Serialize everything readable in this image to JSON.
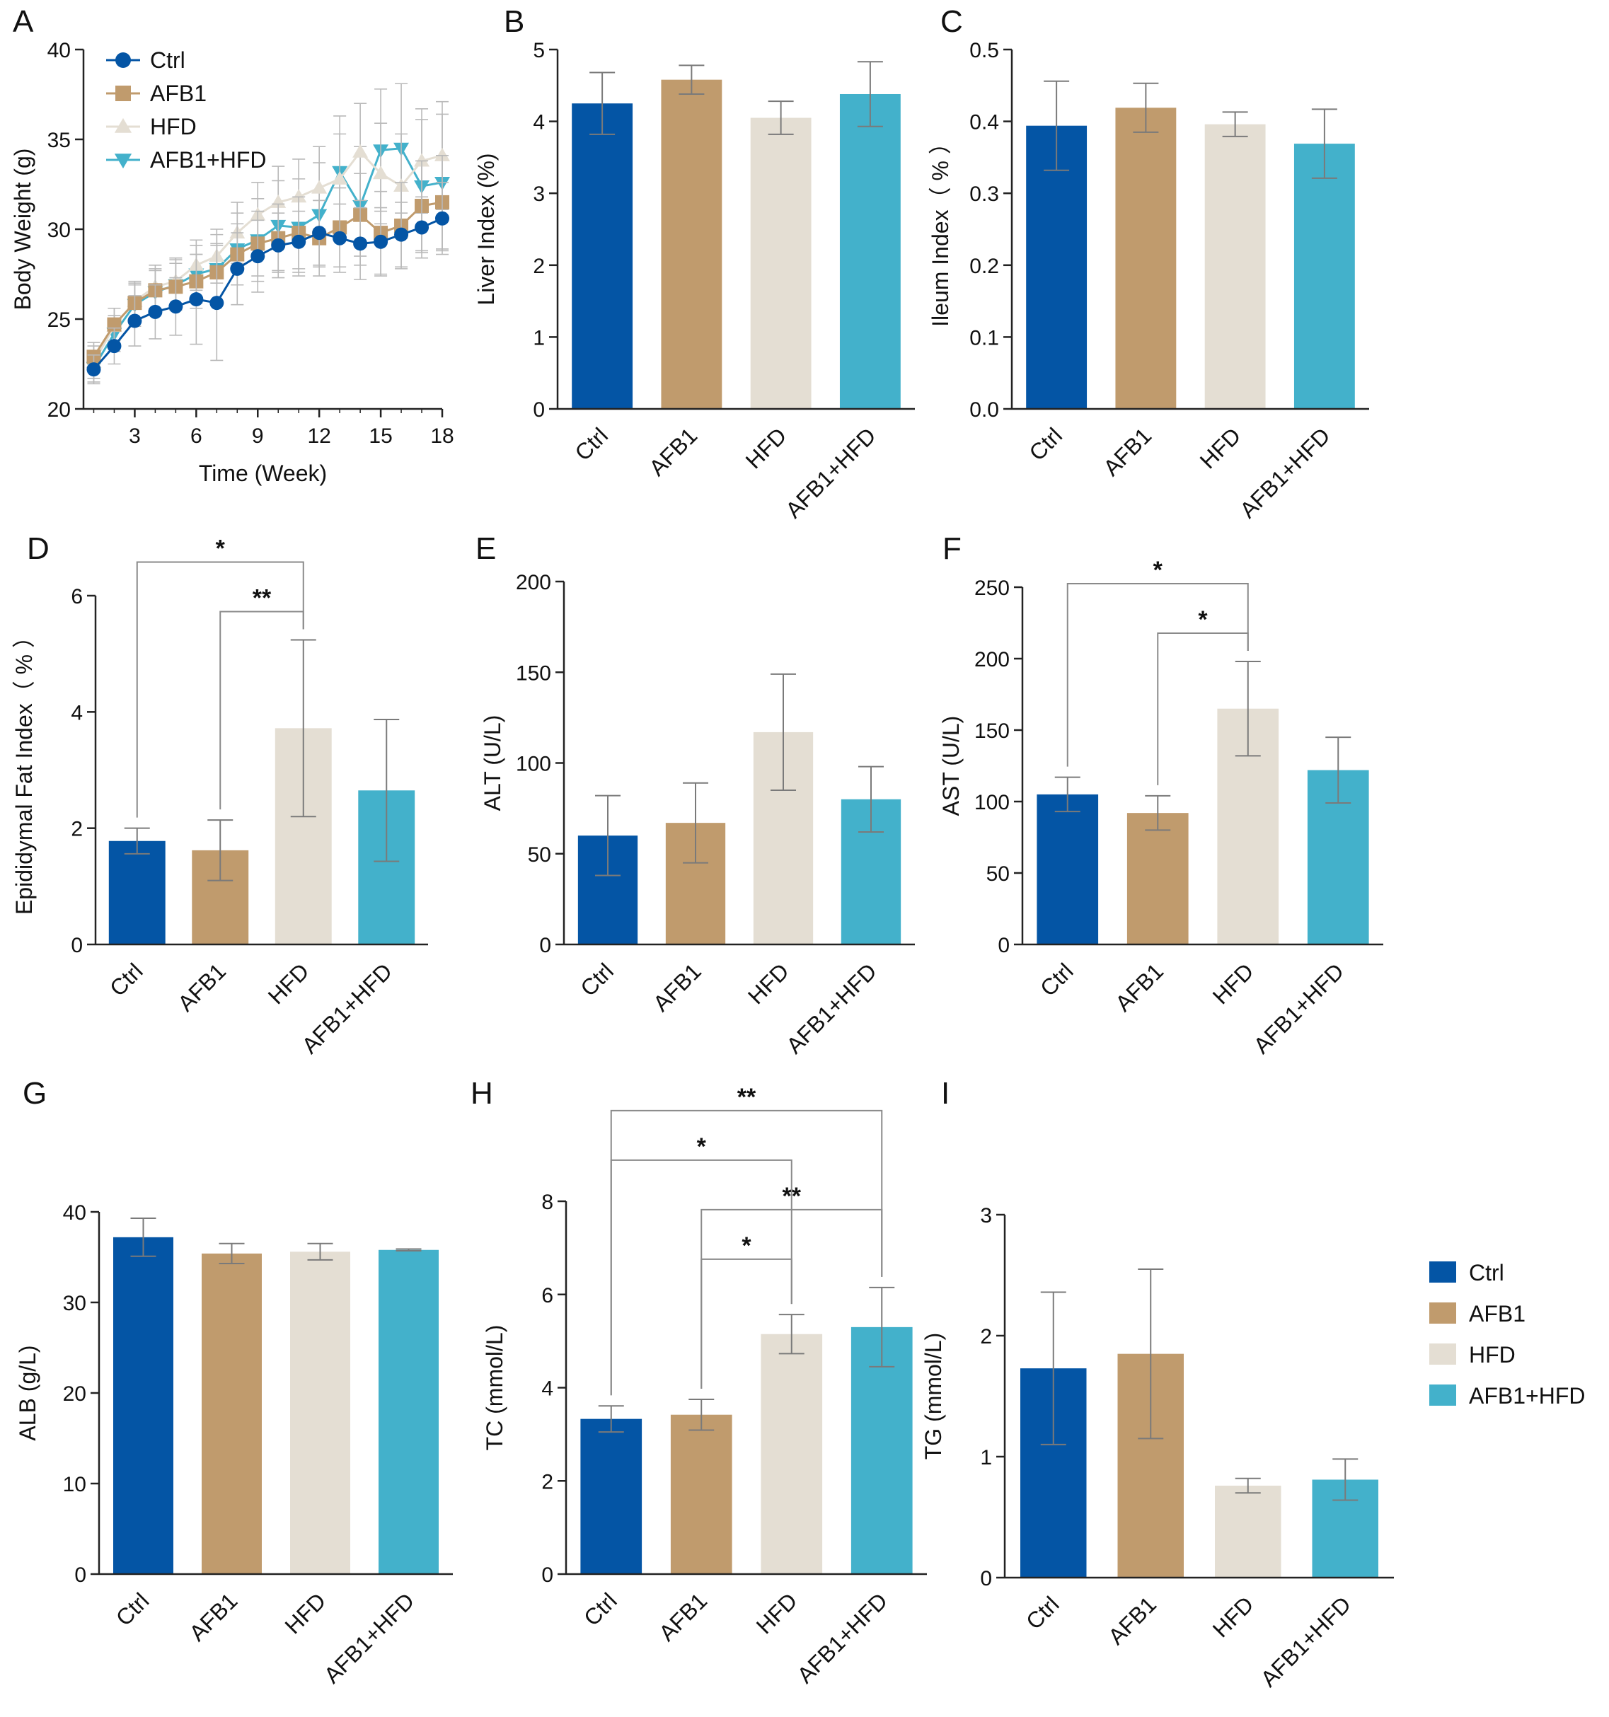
{
  "colors": {
    "Ctrl": "#0455a5",
    "AFB1": "#c09b6d",
    "HFD": "#e4ded3",
    "AFB1+HFD": "#43b1cb"
  },
  "groups": [
    "Ctrl",
    "AFB1",
    "HFD",
    "AFB1+HFD"
  ],
  "legend": {
    "items": [
      "Ctrl",
      "AFB1",
      "HFD",
      "AFB1+HFD"
    ]
  },
  "chart_data": [
    {
      "id": "A",
      "type": "line",
      "panel_label": "A",
      "xlabel": "Time (Week)",
      "ylabel": "Body Weight (g)",
      "xlim": [
        0.5,
        18
      ],
      "ylim": [
        20,
        40
      ],
      "xticks": [
        3,
        6,
        9,
        12,
        15,
        18
      ],
      "yticks": [
        20,
        25,
        30,
        35,
        40
      ],
      "legend": [
        "Ctrl",
        "AFB1",
        "HFD",
        "AFB1+HFD"
      ],
      "x": [
        1,
        2,
        3,
        4,
        5,
        6,
        7,
        8,
        9,
        10,
        11,
        12,
        13,
        14,
        15,
        16,
        17,
        18
      ],
      "series": [
        {
          "name": "Ctrl",
          "marker": "circle",
          "values": [
            22.2,
            23.5,
            24.9,
            25.4,
            25.7,
            26.1,
            25.9,
            27.8,
            28.5,
            29.1,
            29.3,
            29.8,
            29.5,
            29.2,
            29.3,
            29.7,
            30.1,
            30.6
          ],
          "errors": [
            0.8,
            1.0,
            1.4,
            1.5,
            1.6,
            2.5,
            3.2,
            2.0,
            2.0,
            1.8,
            1.7,
            1.8,
            1.9,
            2.0,
            1.9,
            1.8,
            1.7,
            2.0
          ]
        },
        {
          "name": "AFB1",
          "marker": "square",
          "values": [
            22.9,
            24.7,
            25.9,
            26.6,
            26.8,
            27.1,
            27.6,
            28.6,
            29.2,
            29.5,
            29.8,
            29.5,
            30.1,
            30.8,
            29.8,
            30.2,
            31.3,
            31.5
          ],
          "errors": [
            0.8,
            0.9,
            1.0,
            1.2,
            1.3,
            1.5,
            1.6,
            1.7,
            1.8,
            1.9,
            2.0,
            2.1,
            2.2,
            2.3,
            2.3,
            2.4,
            2.5,
            2.6
          ]
        },
        {
          "name": "HFD",
          "marker": "triangle-up",
          "values": [
            22.6,
            24.6,
            26.0,
            26.8,
            27.1,
            28.0,
            28.5,
            29.8,
            30.8,
            31.5,
            31.8,
            32.3,
            32.8,
            34.3,
            33.1,
            32.4,
            33.8,
            34.1
          ],
          "errors": [
            0.9,
            1.0,
            1.1,
            1.2,
            1.3,
            1.4,
            1.5,
            1.7,
            1.8,
            2.0,
            2.1,
            2.3,
            2.5,
            2.7,
            2.8,
            2.9,
            2.9,
            3.0
          ]
        },
        {
          "name": "AFB1+HFD",
          "marker": "triangle-down",
          "values": [
            22.3,
            24.2,
            25.8,
            26.5,
            26.9,
            27.5,
            27.8,
            28.9,
            29.4,
            30.2,
            30.1,
            30.8,
            33.2,
            31.3,
            34.4,
            34.5,
            32.4,
            32.6
          ],
          "errors": [
            0.8,
            1.0,
            1.2,
            1.2,
            1.4,
            1.6,
            1.9,
            2.0,
            2.3,
            2.5,
            2.7,
            2.9,
            3.1,
            3.3,
            3.4,
            3.6,
            3.7,
            3.8
          ]
        }
      ]
    },
    {
      "id": "B",
      "type": "bar",
      "panel_label": "B",
      "ylabel": "Liver Index (%)",
      "categories": [
        "Ctrl",
        "AFB1",
        "HFD",
        "AFB1+HFD"
      ],
      "values": [
        4.25,
        4.58,
        4.05,
        4.38
      ],
      "errors": [
        0.43,
        0.2,
        0.23,
        0.45
      ],
      "ylim": [
        0,
        5
      ],
      "yticks": [
        0,
        1,
        2,
        3,
        4,
        5
      ],
      "significance": []
    },
    {
      "id": "C",
      "type": "bar",
      "panel_label": "C",
      "ylabel": "Ileum Index（ % ）",
      "categories": [
        "Ctrl",
        "AFB1",
        "HFD",
        "AFB1+HFD"
      ],
      "values": [
        0.394,
        0.419,
        0.396,
        0.369
      ],
      "errors": [
        0.062,
        0.034,
        0.017,
        0.048
      ],
      "ylim": [
        0,
        0.5
      ],
      "yticks": [
        "0.0",
        "0.1",
        "0.2",
        "0.3",
        "0.4",
        "0.5"
      ],
      "significance": []
    },
    {
      "id": "D",
      "type": "bar",
      "panel_label": "D",
      "ylabel": "Epididymal Fat Index（ % ）",
      "categories": [
        "Ctrl",
        "AFB1",
        "HFD",
        "AFB1+HFD"
      ],
      "values": [
        1.78,
        1.62,
        3.72,
        2.65
      ],
      "errors": [
        0.22,
        0.52,
        1.52,
        1.22
      ],
      "ylim": [
        0,
        6
      ],
      "yticks": [
        0,
        2,
        4,
        6
      ],
      "significance": [
        {
          "from": 0,
          "to": 2,
          "label": "*"
        },
        {
          "from": 1,
          "to": 2,
          "label": "**"
        }
      ]
    },
    {
      "id": "E",
      "type": "bar",
      "panel_label": "E",
      "ylabel": "ALT (U/L)",
      "categories": [
        "Ctrl",
        "AFB1",
        "HFD",
        "AFB1+HFD"
      ],
      "values": [
        60,
        67,
        117,
        80
      ],
      "errors": [
        22,
        22,
        32,
        18
      ],
      "ylim": [
        0,
        200
      ],
      "yticks": [
        0,
        50,
        100,
        150,
        200
      ],
      "significance": []
    },
    {
      "id": "F",
      "type": "bar",
      "panel_label": "F",
      "ylabel": "AST (U/L)",
      "categories": [
        "Ctrl",
        "AFB1",
        "HFD",
        "AFB1+HFD"
      ],
      "values": [
        105,
        92,
        165,
        122
      ],
      "errors": [
        12,
        12,
        33,
        23
      ],
      "ylim": [
        0,
        250
      ],
      "yticks": [
        0,
        50,
        100,
        150,
        200,
        250
      ],
      "significance": [
        {
          "from": 0,
          "to": 2,
          "label": "*"
        },
        {
          "from": 1,
          "to": 2,
          "label": "*"
        }
      ]
    },
    {
      "id": "G",
      "type": "bar",
      "panel_label": "G",
      "ylabel": "ALB (g/L)",
      "categories": [
        "Ctrl",
        "AFB1",
        "HFD",
        "AFB1+HFD"
      ],
      "values": [
        37.2,
        35.4,
        35.6,
        35.8
      ],
      "errors": [
        2.1,
        1.1,
        0.9,
        0.1
      ],
      "ylim": [
        0,
        40
      ],
      "yticks": [
        0,
        10,
        20,
        30,
        40
      ],
      "significance": []
    },
    {
      "id": "H",
      "type": "bar",
      "panel_label": "H",
      "ylabel": "TC (mmol/L)",
      "categories": [
        "Ctrl",
        "AFB1",
        "HFD",
        "AFB1+HFD"
      ],
      "values": [
        3.33,
        3.42,
        5.15,
        5.3
      ],
      "errors": [
        0.28,
        0.33,
        0.42,
        0.85
      ],
      "ylim": [
        0,
        8
      ],
      "yticks": [
        0,
        2,
        4,
        6,
        8
      ],
      "significance": [
        {
          "from": 0,
          "to": 3,
          "label": "**"
        },
        {
          "from": 1,
          "to": 3,
          "label": "**"
        },
        {
          "from": 0,
          "to": 2,
          "label": "*"
        },
        {
          "from": 1,
          "to": 2,
          "label": "*"
        }
      ]
    },
    {
      "id": "I",
      "type": "bar",
      "panel_label": "I",
      "ylabel": "TG (mmol/L)",
      "categories": [
        "Ctrl",
        "AFB1",
        "HFD",
        "AFB1+HFD"
      ],
      "values": [
        1.73,
        1.85,
        0.76,
        0.81
      ],
      "errors": [
        0.63,
        0.7,
        0.06,
        0.17
      ],
      "ylim": [
        0,
        3
      ],
      "yticks": [
        0,
        1,
        2,
        3
      ],
      "significance": []
    }
  ]
}
